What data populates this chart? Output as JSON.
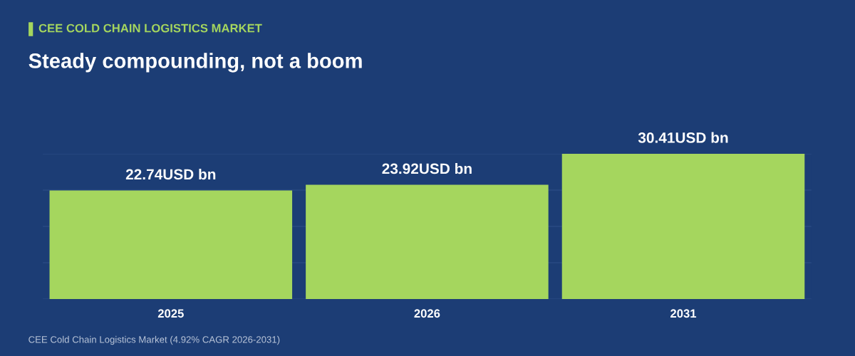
{
  "chart_data": {
    "type": "bar",
    "subtitle": "CEE COLD CHAIN LOGISTICS MARKET",
    "title": "Steady compounding, not a boom",
    "categories": [
      "2025",
      "2026",
      "2031"
    ],
    "values": [
      22.74,
      23.92,
      30.41
    ],
    "value_labels": [
      "22.74USD bn",
      "23.92USD bn",
      "30.41USD bn"
    ],
    "color": "#a5d65e",
    "ylim": [
      0,
      30.41
    ],
    "yticks": [
      {
        "value": 0,
        "label": null
      },
      {
        "value": 7.6,
        "label": null
      },
      {
        "value": 15.2,
        "label": null
      },
      {
        "value": 22.8,
        "label": null
      },
      {
        "value": 30.41,
        "label": null
      }
    ],
    "grid": "y",
    "annotations": [
      "CEE Cold Chain Logistics Market (4.92% CAGR 2026-2031)"
    ]
  }
}
